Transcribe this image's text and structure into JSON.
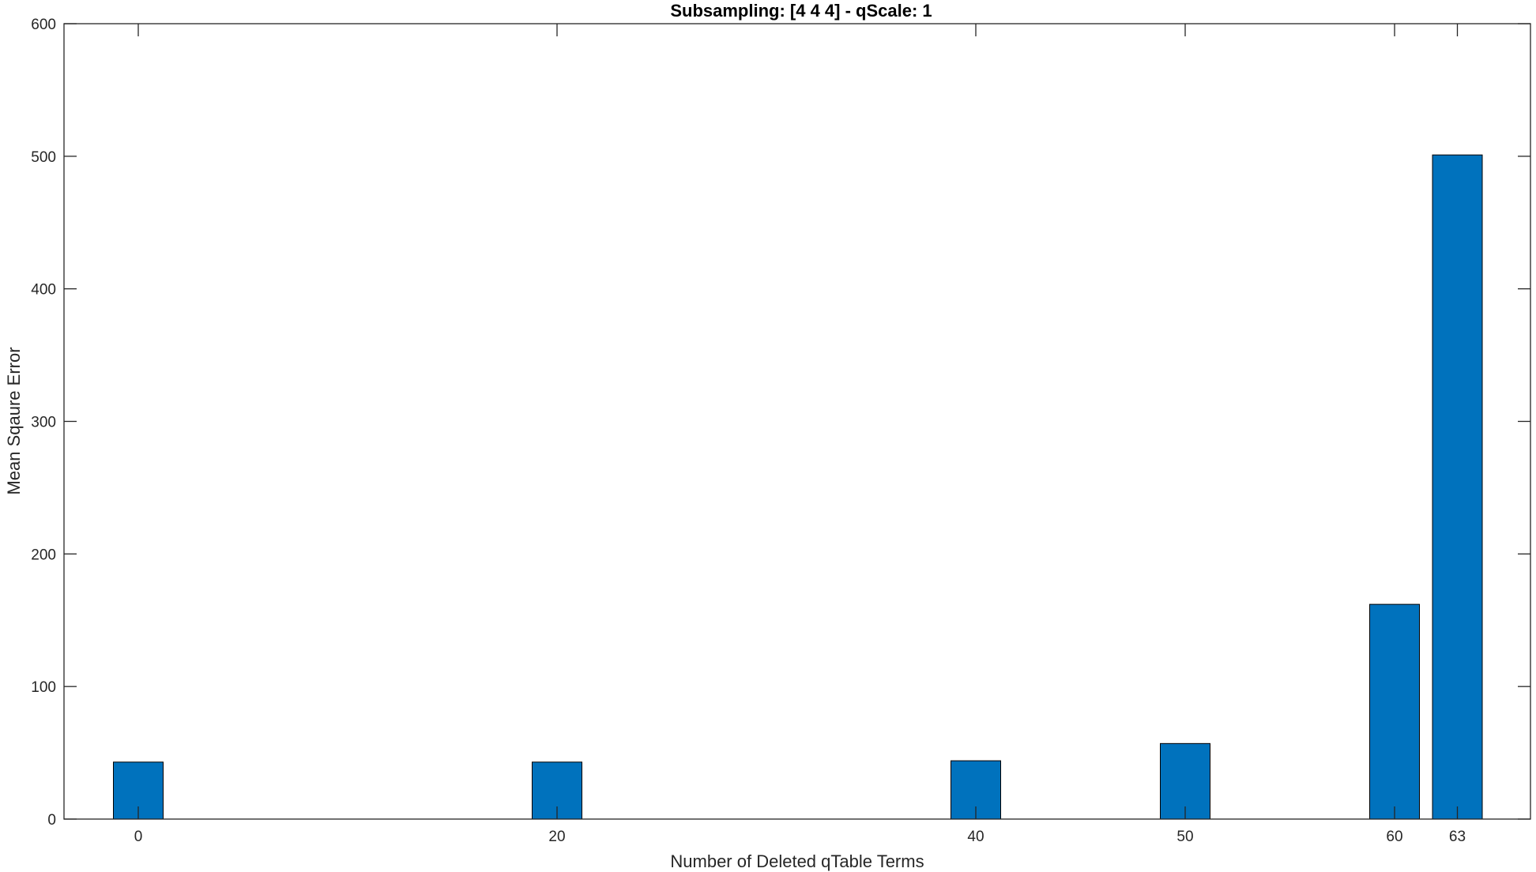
{
  "chart_data": {
    "type": "bar",
    "title": "Subsampling: [4  4  4] - qScale: 1",
    "xlabel": "Number of Deleted qTable Terms",
    "ylabel": "Mean Sqaure Error",
    "x": [
      0,
      20,
      40,
      50,
      60,
      63
    ],
    "x_tick_labels": [
      "0",
      "20",
      "40",
      "50",
      "60",
      "63"
    ],
    "values": [
      43,
      43,
      44,
      57,
      162,
      501
    ],
    "ylim": [
      0,
      600
    ],
    "y_ticks": [
      0,
      100,
      200,
      300,
      400,
      500,
      600
    ],
    "y_tick_labels": [
      "0",
      "100",
      "200",
      "300",
      "400",
      "500",
      "600"
    ],
    "bar_color": "#0072BD",
    "bar_edge_color": "#000000",
    "grid": false,
    "legend": "none"
  }
}
